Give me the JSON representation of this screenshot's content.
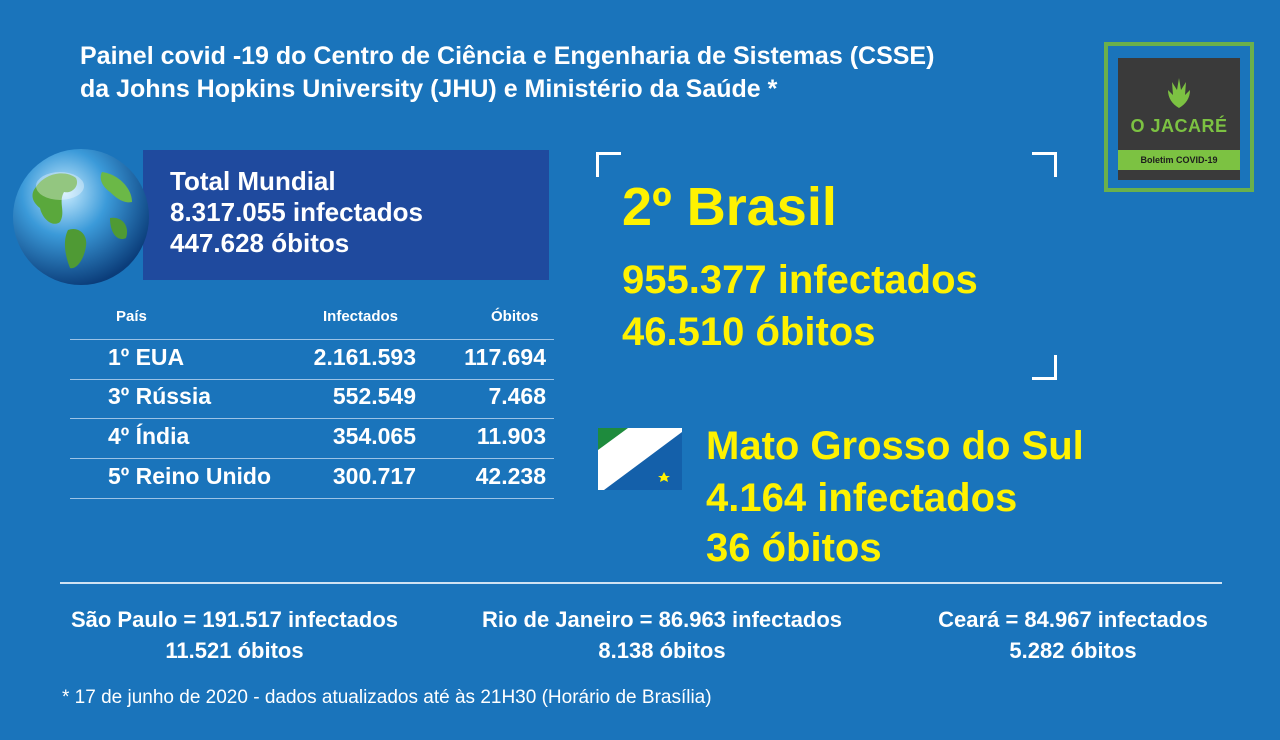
{
  "header": {
    "line1": "Painel covid -19 do Centro de Ciência e Engenharia de Sistemas (CSSE)",
    "line2": "da Johns Hopkins University (JHU) e Ministério da Saúde *"
  },
  "logo": {
    "name": "O JACARÉ",
    "tagline": "Boletim COVID-19",
    "icon": "jacare-logo-icon",
    "colors": {
      "green": "#7cc242",
      "dark": "#3a3a3a"
    }
  },
  "world": {
    "title": "Total Mundial",
    "infected": "8.317.055 infectados",
    "deaths": "447.628 óbitos",
    "icon": "globe-icon"
  },
  "table": {
    "headers": {
      "country": "País",
      "infected": "Infectados",
      "deaths": "Óbitos"
    },
    "rows": [
      {
        "country": "1º EUA",
        "infected": "2.161.593",
        "deaths": "117.694"
      },
      {
        "country": "3º Rússia",
        "infected": "552.549",
        "deaths": "7.468"
      },
      {
        "country": "4º Índia",
        "infected": "354.065",
        "deaths": "11.903"
      },
      {
        "country": "5º Reino Unido",
        "infected": "300.717",
        "deaths": "42.238"
      }
    ]
  },
  "brasil": {
    "rank": "2º Brasil",
    "infected": "955.377 infectados",
    "deaths": "46.510 óbitos"
  },
  "ms": {
    "name": "Mato Grosso do Sul",
    "infected": "4.164 infectados",
    "deaths": "36 óbitos",
    "flag_icon": "ms-flag-icon"
  },
  "states": [
    {
      "line1": "São Paulo = 191.517 infectados",
      "line2": "11.521 óbitos"
    },
    {
      "line1": "Rio de Janeiro = 86.963 infectados",
      "line2": "8.138 óbitos"
    },
    {
      "line1": "Ceará = 84.967 infectados",
      "line2": "5.282 óbitos"
    }
  ],
  "footnote": "* 17 de junho de 2020 - dados atualizados até às 21H30 (Horário de Brasília)",
  "colors": {
    "background": "#1a74bb",
    "panel": "#1f4a9e",
    "highlight": "#fff200"
  }
}
